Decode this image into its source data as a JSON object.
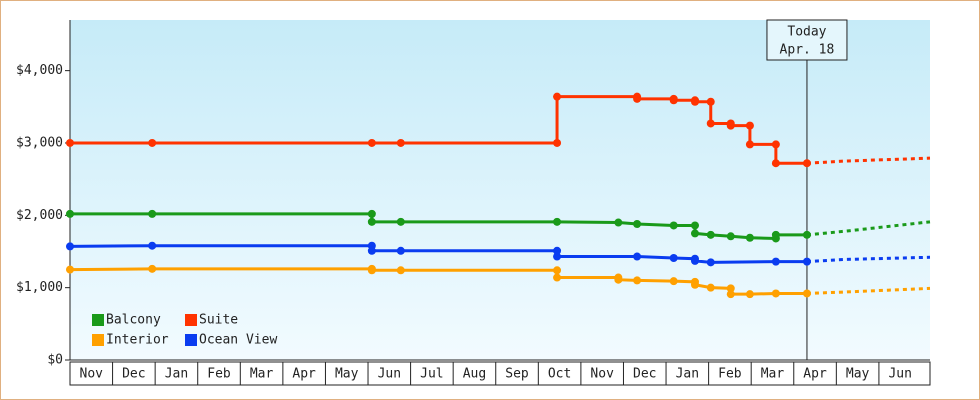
{
  "chart_data": {
    "type": "line",
    "categories": [
      "Nov",
      "Dec",
      "Jan",
      "Feb",
      "Mar",
      "Apr",
      "May",
      "Jun",
      "Jul",
      "Aug",
      "Sep",
      "Oct",
      "Nov",
      "Dec",
      "Jan",
      "Feb",
      "Mar",
      "Apr",
      "May",
      "Jun"
    ],
    "xlim": [
      0,
      20.2
    ],
    "ylim": [
      0,
      4700
    ],
    "yticks": [
      {
        "value": 0,
        "label": "$0"
      },
      {
        "value": 1000,
        "label": "$1,000"
      },
      {
        "value": 2000,
        "label": "$2,000"
      },
      {
        "value": 3000,
        "label": "$3,000"
      },
      {
        "value": 4000,
        "label": "$4,000"
      }
    ],
    "today": {
      "x": 17.31,
      "label": "Today",
      "date": "Apr. 18"
    },
    "series": [
      {
        "name": "Balcony",
        "color": "#1a9a1a",
        "x": [
          0,
          1.93,
          7.09,
          7.09,
          7.77,
          11.44,
          12.88,
          13.32,
          14.18,
          14.68,
          14.68,
          15.05,
          15.52,
          15.97,
          16.58,
          16.58,
          17.31
        ],
        "values": [
          2020,
          2020,
          2020,
          1910,
          1910,
          1910,
          1900,
          1880,
          1860,
          1860,
          1750,
          1730,
          1710,
          1690,
          1680,
          1730,
          1730
        ],
        "forecast_x": [
          17.31,
          18.2,
          20.2
        ],
        "forecast_values": [
          1730,
          1780,
          1910
        ]
      },
      {
        "name": "Suite",
        "color": "#ff3300",
        "x": [
          0,
          1.93,
          7.09,
          7.77,
          11.44,
          11.44,
          13.32,
          13.32,
          14.18,
          14.18,
          14.68,
          14.68,
          15.05,
          15.05,
          15.52,
          15.52,
          15.97,
          15.97,
          16.58,
          16.58,
          17.31
        ],
        "values": [
          3000,
          3000,
          3000,
          3000,
          3000,
          3640,
          3640,
          3610,
          3610,
          3590,
          3590,
          3570,
          3570,
          3270,
          3270,
          3240,
          3240,
          2980,
          2980,
          2720,
          2720
        ],
        "forecast_x": [
          17.31,
          18.2,
          20.2
        ],
        "forecast_values": [
          2720,
          2750,
          2790
        ]
      },
      {
        "name": "Interior",
        "color": "#ffa000",
        "x": [
          0,
          1.93,
          7.09,
          7.09,
          7.77,
          11.44,
          11.44,
          12.88,
          12.88,
          13.32,
          14.18,
          14.68,
          14.68,
          15.05,
          15.52,
          15.52,
          15.97,
          16.58,
          17.31
        ],
        "values": [
          1250,
          1260,
          1260,
          1240,
          1240,
          1240,
          1140,
          1140,
          1110,
          1100,
          1090,
          1080,
          1040,
          1000,
          990,
          910,
          910,
          920,
          920
        ],
        "forecast_x": [
          17.31,
          18.2,
          20.2
        ],
        "forecast_values": [
          920,
          940,
          990
        ]
      },
      {
        "name": "Ocean View",
        "color": "#0a3cf0",
        "x": [
          0,
          1.93,
          7.09,
          7.09,
          7.77,
          11.44,
          11.44,
          13.32,
          14.18,
          14.68,
          14.68,
          15.05,
          16.58,
          17.31
        ],
        "values": [
          1570,
          1580,
          1580,
          1510,
          1510,
          1510,
          1430,
          1430,
          1410,
          1400,
          1370,
          1350,
          1360,
          1360
        ],
        "forecast_x": [
          17.31,
          18.2,
          20.2
        ],
        "forecast_values": [
          1360,
          1390,
          1420
        ]
      }
    ]
  }
}
